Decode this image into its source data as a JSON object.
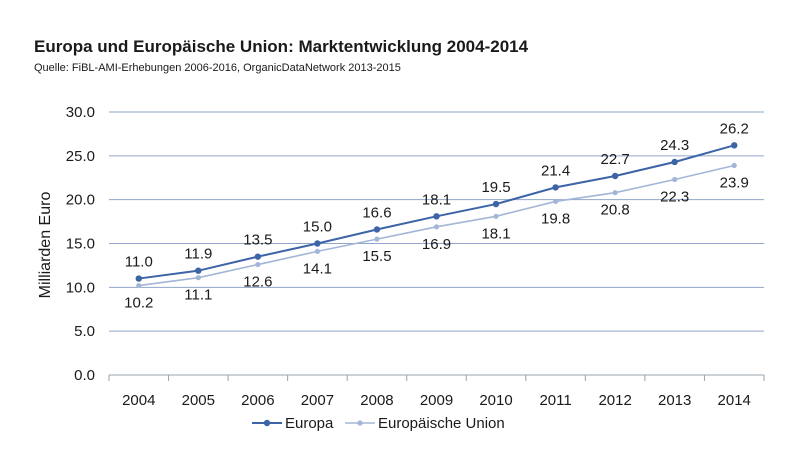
{
  "chart_data": {
    "type": "line",
    "title": "Europa und Europäische Union: Marktentwicklung 2004-2014",
    "subtitle": "Quelle: FiBL-AMI-Erhebungen 2006-2016, OrganicDataNetwork 2013-2015",
    "xlabel": "",
    "ylabel": "Milliarden Euro",
    "x": [
      "2004",
      "2005",
      "2006",
      "2007",
      "2008",
      "2009",
      "2010",
      "2011",
      "2012",
      "2013",
      "2014"
    ],
    "yticks": [
      "0.0",
      "5.0",
      "10.0",
      "15.0",
      "20.0",
      "25.0",
      "30.0"
    ],
    "ylim": [
      0,
      30
    ],
    "grid": true,
    "legend_position": "bottom",
    "series": [
      {
        "name": "Europa",
        "color": "#3c64a6",
        "values": [
          11.0,
          11.9,
          13.5,
          15.0,
          16.6,
          18.1,
          19.5,
          21.4,
          22.7,
          24.3,
          26.2
        ],
        "labels": [
          "11.0",
          "11.9",
          "13.5",
          "15.0",
          "16.6",
          "18.1",
          "19.5",
          "21.4",
          "22.7",
          "24.3",
          "26.2"
        ],
        "label_position": "above"
      },
      {
        "name": "Europäische Union",
        "color": "#a3b6d6",
        "values": [
          10.2,
          11.1,
          12.6,
          14.1,
          15.5,
          16.9,
          18.1,
          19.8,
          20.8,
          22.3,
          23.9
        ],
        "labels": [
          "10.2",
          "11.1",
          "12.6",
          "14.1",
          "15.5",
          "16.9",
          "18.1",
          "19.8",
          "20.8",
          "22.3",
          "23.9"
        ],
        "label_position": "below"
      }
    ]
  }
}
